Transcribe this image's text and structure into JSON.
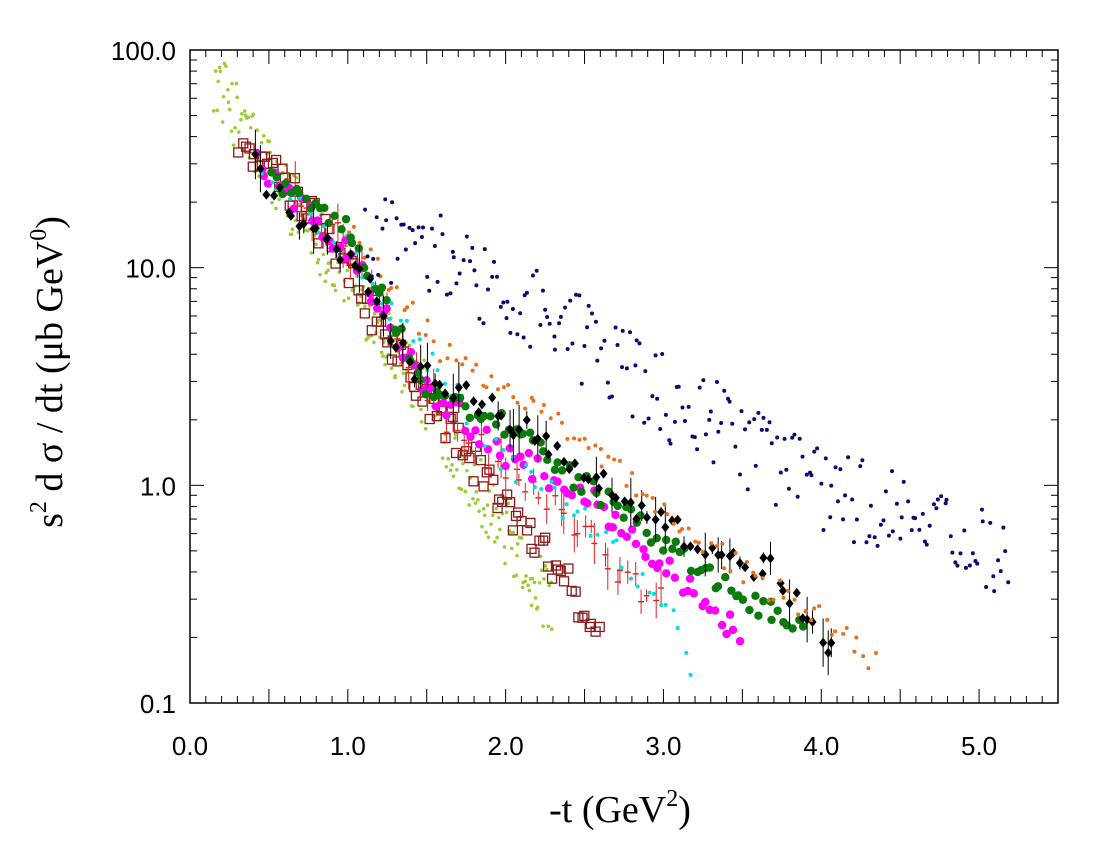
{
  "chart_data": {
    "type": "scatter",
    "title": "",
    "xlabel": {
      "main": "-t (GeV",
      "sup": "2",
      "tail": ")"
    },
    "ylabel": {
      "main": "s",
      "sup": "2",
      "mid": " d σ / dt (μb GeV",
      "sup2": "0",
      "tail": ")"
    },
    "xlim": [
      0,
      5.5
    ],
    "ylim": [
      0.1,
      100
    ],
    "yscale": "log",
    "x_ticks": [
      {
        "v": 0,
        "label": "0.0"
      },
      {
        "v": 1,
        "label": "1.0"
      },
      {
        "v": 2,
        "label": "2.0"
      },
      {
        "v": 3,
        "label": "3.0"
      },
      {
        "v": 4,
        "label": "4.0"
      },
      {
        "v": 5,
        "label": "5.0"
      }
    ],
    "y_ticks": [
      {
        "v": 0.1,
        "label": "0.1"
      },
      {
        "v": 1,
        "label": "1.0"
      },
      {
        "v": 10,
        "label": "10.0"
      },
      {
        "v": 100,
        "label": "100.0"
      }
    ],
    "grid": false,
    "legend": "none",
    "series": [
      {
        "name": "yellow-green small dots",
        "color": "#9acd32",
        "marker": "dot-small",
        "n": 260,
        "x_range": [
          0.15,
          2.3
        ],
        "anchors": [
          [
            0.15,
            75
          ],
          [
            0.5,
            28
          ],
          [
            1.0,
            9
          ],
          [
            1.5,
            2.5
          ],
          [
            2.0,
            0.6
          ],
          [
            2.3,
            0.27
          ]
        ],
        "spread": 0.32
      },
      {
        "name": "brown open squares",
        "color": "#8b1a1a",
        "marker": "open-square",
        "n": 110,
        "x_range": [
          0.3,
          2.6
        ],
        "anchors": [
          [
            0.3,
            34
          ],
          [
            0.6,
            25
          ],
          [
            1.0,
            10
          ],
          [
            1.3,
            4
          ],
          [
            1.6,
            2
          ],
          [
            2.0,
            0.8
          ],
          [
            2.3,
            0.42
          ],
          [
            2.6,
            0.22
          ]
        ],
        "spread": 0.18
      },
      {
        "name": "red crosses with error bars",
        "color": "#e02020",
        "marker": "plus-err",
        "n": 60,
        "x_range": [
          0.6,
          3.0
        ],
        "anchors": [
          [
            0.6,
            25
          ],
          [
            1.0,
            13
          ],
          [
            1.5,
            2.5
          ],
          [
            2.0,
            1.2
          ],
          [
            2.5,
            0.6
          ],
          [
            2.9,
            0.3
          ]
        ],
        "spread": 0.15
      },
      {
        "name": "magenta filled circles",
        "color": "#ff00ff",
        "marker": "circle",
        "n": 100,
        "x_range": [
          0.4,
          3.5
        ],
        "anchors": [
          [
            0.4,
            32
          ],
          [
            1.0,
            12
          ],
          [
            1.5,
            2.8
          ],
          [
            2.0,
            1.4
          ],
          [
            2.5,
            0.9
          ],
          [
            3.0,
            0.45
          ],
          [
            3.5,
            0.2
          ]
        ],
        "spread": 0.12
      },
      {
        "name": "cyan small dots",
        "color": "#00e0e0",
        "marker": "dot",
        "n": 70,
        "x_range": [
          0.45,
          3.2
        ],
        "anchors": [
          [
            0.45,
            28
          ],
          [
            1.0,
            12
          ],
          [
            2.0,
            1.3
          ],
          [
            2.5,
            0.7
          ],
          [
            3.0,
            0.3
          ],
          [
            3.2,
            0.14
          ]
        ],
        "spread": 0.14
      },
      {
        "name": "green filled circles",
        "color": "#0a7a0a",
        "marker": "circle",
        "n": 110,
        "x_range": [
          0.5,
          3.9
        ],
        "anchors": [
          [
            0.5,
            27
          ],
          [
            1.0,
            15
          ],
          [
            1.5,
            2.8
          ],
          [
            2.0,
            1.9
          ],
          [
            2.5,
            1.0
          ],
          [
            3.0,
            0.55
          ],
          [
            3.5,
            0.3
          ],
          [
            3.9,
            0.22
          ]
        ],
        "spread": 0.1
      },
      {
        "name": "black diamonds with error bars",
        "color": "#000000",
        "marker": "diamond-err",
        "n": 95,
        "x_range": [
          0.4,
          4.1
        ],
        "anchors": [
          [
            0.4,
            30
          ],
          [
            0.7,
            15
          ],
          [
            1.0,
            12
          ],
          [
            1.4,
            3.5
          ],
          [
            1.8,
            2.5
          ],
          [
            2.3,
            1.5
          ],
          [
            2.8,
            0.8
          ],
          [
            3.2,
            0.55
          ],
          [
            3.7,
            0.4
          ],
          [
            4.05,
            0.18
          ]
        ],
        "spread": 0.12
      },
      {
        "name": "orange small dots",
        "color": "#e8701a",
        "marker": "dot",
        "n": 100,
        "x_range": [
          1.0,
          4.35
        ],
        "anchors": [
          [
            1.0,
            16
          ],
          [
            1.3,
            8
          ],
          [
            1.6,
            4
          ],
          [
            2.0,
            2.8
          ],
          [
            2.5,
            1.5
          ],
          [
            3.0,
            0.8
          ],
          [
            3.5,
            0.4
          ],
          [
            4.0,
            0.25
          ],
          [
            4.35,
            0.15
          ]
        ],
        "spread": 0.13
      },
      {
        "name": "navy small dots",
        "color": "#0b0b70",
        "marker": "dot",
        "n": 230,
        "x_range": [
          1.1,
          5.2
        ],
        "anchors": [
          [
            1.1,
            14
          ],
          [
            1.6,
            11
          ],
          [
            2.0,
            8
          ],
          [
            2.5,
            4.5
          ],
          [
            3.0,
            2.5
          ],
          [
            3.5,
            1.6
          ],
          [
            4.0,
            1.0
          ],
          [
            4.5,
            0.7
          ],
          [
            5.0,
            0.5
          ],
          [
            5.2,
            0.45
          ]
        ],
        "spread": 0.42
      }
    ]
  }
}
